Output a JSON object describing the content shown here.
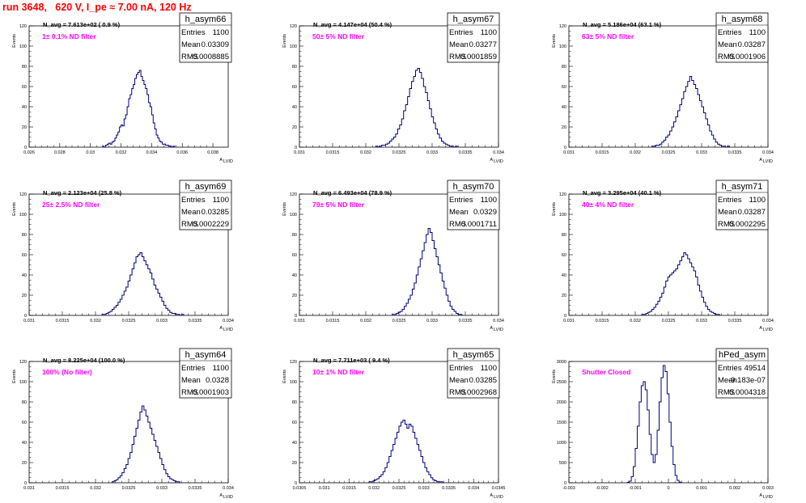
{
  "title": "run 3648,   620 V, I_pe ≈ 7.00 nA, 120 Hz",
  "colors": {
    "title": "#ff0000",
    "histogram": "#00007f",
    "annotation": "#ff00ff",
    "axis": "#000000",
    "background": "#ffffff"
  },
  "ylabel": "Events",
  "xlabel_main": "A",
  "xlabel_sub": "LVID",
  "stat_labels": {
    "entries": "Entries",
    "mean": "Mean",
    "rms": "RMS"
  },
  "chart_data": [
    {
      "type": "bar",
      "name": "h_asym66",
      "navg": "N_avg = 7.613e+02 ( 0.9 %)",
      "filter": "1± 0.1% ND filter",
      "stats": {
        "entries": "1100",
        "mean": "0.03309",
        "rms": "0.0008885"
      },
      "xlim": [
        0.026,
        0.039
      ],
      "ylim": [
        0,
        120
      ],
      "xticks": [
        0.026,
        0.028,
        0.03,
        0.032,
        0.034,
        0.036,
        0.038
      ],
      "xtick_labels": [
        "0.026",
        "0.028",
        "0.03",
        "0.032",
        "0.034",
        "0.036",
        "0.038"
      ],
      "yticks": [
        0,
        20,
        40,
        60,
        80,
        100,
        120
      ],
      "ytick_labels": [
        "0",
        "20",
        "40",
        "60",
        "80",
        "100",
        "120"
      ],
      "bin_start": 0.0308,
      "bin_width": 0.0001,
      "values": [
        1,
        0,
        2,
        3,
        4,
        3,
        5,
        6,
        9,
        12,
        15,
        20,
        22,
        21,
        28,
        32,
        40,
        48,
        52,
        58,
        62,
        68,
        72,
        74,
        76,
        70,
        66,
        62,
        58,
        52,
        44,
        40,
        32,
        24,
        18,
        12,
        9,
        6,
        5,
        3,
        3,
        2,
        2,
        1,
        1,
        0,
        1
      ]
    },
    {
      "type": "bar",
      "name": "h_asym67",
      "navg": "N_avg = 4.147e+04 (50.4 %)",
      "filter": "50± 5% ND filter",
      "stats": {
        "entries": "1100",
        "mean": "0.03277",
        "rms": "0.0001859"
      },
      "xlim": [
        0.031,
        0.034
      ],
      "ylim": [
        0,
        120
      ],
      "xticks": [
        0.031,
        0.0315,
        0.032,
        0.0325,
        0.033,
        0.0335,
        0.034
      ],
      "xtick_labels": [
        "0.031",
        "0.0315",
        "0.032",
        "0.0325",
        "0.033",
        "0.0335",
        "0.034"
      ],
      "yticks": [
        0,
        20,
        40,
        60,
        80,
        100,
        120
      ],
      "ytick_labels": [
        "0",
        "20",
        "40",
        "60",
        "80",
        "100",
        "120"
      ],
      "bin_start": 0.03215,
      "bin_width": 3e-05,
      "values": [
        1,
        0,
        1,
        2,
        2,
        3,
        4,
        6,
        8,
        10,
        13,
        18,
        22,
        28,
        36,
        42,
        50,
        58,
        65,
        70,
        76,
        78,
        74,
        68,
        60,
        54,
        46,
        38,
        30,
        24,
        18,
        13,
        9,
        6,
        4,
        3,
        2,
        1,
        1,
        0,
        1
      ]
    },
    {
      "type": "bar",
      "name": "h_asym68",
      "navg": "N_avg = 5.186e+04 (63.1 %)",
      "filter": "63± 5% ND filter",
      "stats": {
        "entries": "1100",
        "mean": "0.03287",
        "rms": "0.0001906"
      },
      "xlim": [
        0.031,
        0.034
      ],
      "ylim": [
        0,
        120
      ],
      "xticks": [
        0.031,
        0.0315,
        0.032,
        0.0325,
        0.033,
        0.0335,
        0.034
      ],
      "xtick_labels": [
        "0.031",
        "0.0315",
        "0.032",
        "0.0325",
        "0.033",
        "0.0335",
        "0.034"
      ],
      "yticks": [
        0,
        20,
        40,
        60,
        80,
        100,
        120
      ],
      "ytick_labels": [
        "0",
        "20",
        "40",
        "60",
        "80",
        "100",
        "120"
      ],
      "bin_start": 0.03225,
      "bin_width": 3e-05,
      "values": [
        1,
        1,
        2,
        2,
        3,
        5,
        7,
        10,
        12,
        16,
        20,
        25,
        30,
        36,
        42,
        48,
        55,
        60,
        65,
        70,
        66,
        62,
        58,
        52,
        46,
        40,
        34,
        28,
        22,
        16,
        12,
        8,
        5,
        3,
        2,
        1,
        1,
        0,
        1
      ]
    },
    {
      "type": "bar",
      "name": "h_asym69",
      "navg": "N_avg = 2.123e+04 (25.8 %)",
      "filter": "25± 2.5% ND filter",
      "stats": {
        "entries": "1100",
        "mean": "0.03285",
        "rms": "0.0002229"
      },
      "xlim": [
        0.031,
        0.034
      ],
      "ylim": [
        0,
        120
      ],
      "xticks": [
        0.031,
        0.0315,
        0.032,
        0.0325,
        0.033,
        0.0335,
        0.034
      ],
      "xtick_labels": [
        "0.031",
        "0.0315",
        "0.032",
        "0.0325",
        "0.033",
        "0.0335",
        "0.034"
      ],
      "yticks": [
        0,
        20,
        40,
        60,
        80,
        100,
        120
      ],
      "ytick_labels": [
        "0",
        "20",
        "40",
        "60",
        "80",
        "100",
        "120"
      ],
      "bin_start": 0.0321,
      "bin_width": 3e-05,
      "values": [
        1,
        1,
        2,
        3,
        4,
        6,
        8,
        10,
        13,
        16,
        20,
        24,
        28,
        34,
        40,
        46,
        52,
        58,
        60,
        62,
        58,
        54,
        50,
        46,
        42,
        36,
        30,
        26,
        22,
        18,
        14,
        10,
        7,
        5,
        3,
        2,
        2,
        1,
        1,
        0,
        1
      ]
    },
    {
      "type": "bar",
      "name": "h_asym70",
      "navg": "N_avg = 6.493e+04 (78.9 %)",
      "filter": "79± 5% ND filter",
      "stats": {
        "entries": "1100",
        "mean": "0.0329",
        "rms": "0.0001711"
      },
      "xlim": [
        0.031,
        0.034
      ],
      "ylim": [
        0,
        120
      ],
      "xticks": [
        0.031,
        0.0315,
        0.032,
        0.0325,
        0.033,
        0.0335,
        0.034
      ],
      "xtick_labels": [
        "0.031",
        "0.0315",
        "0.032",
        "0.0325",
        "0.033",
        "0.0335",
        "0.034"
      ],
      "yticks": [
        0,
        20,
        40,
        60,
        80,
        100,
        120
      ],
      "ytick_labels": [
        "0",
        "20",
        "40",
        "60",
        "80",
        "100",
        "120"
      ],
      "bin_start": 0.0324,
      "bin_width": 3e-05,
      "values": [
        1,
        1,
        2,
        3,
        4,
        6,
        9,
        12,
        16,
        20,
        26,
        32,
        40,
        48,
        56,
        64,
        72,
        80,
        86,
        82,
        74,
        66,
        58,
        50,
        42,
        34,
        27,
        20,
        14,
        9,
        6,
        4,
        2,
        1,
        1
      ]
    },
    {
      "type": "bar",
      "name": "h_asym71",
      "navg": "N_avg = 3.295e+04 (40.1 %)",
      "filter": "40± 4% ND filter",
      "stats": {
        "entries": "1100",
        "mean": "0.03287",
        "rms": "0.0002295"
      },
      "xlim": [
        0.031,
        0.034
      ],
      "ylim": [
        0,
        120
      ],
      "xticks": [
        0.031,
        0.0315,
        0.032,
        0.0325,
        0.033,
        0.0335,
        0.034
      ],
      "xtick_labels": [
        "0.031",
        "0.0315",
        "0.032",
        "0.0325",
        "0.033",
        "0.0335",
        "0.034"
      ],
      "yticks": [
        0,
        20,
        40,
        60,
        80,
        100,
        120
      ],
      "ytick_labels": [
        "0",
        "20",
        "40",
        "60",
        "80",
        "100",
        "120"
      ],
      "bin_start": 0.0321,
      "bin_width": 3e-05,
      "values": [
        1,
        1,
        2,
        3,
        4,
        6,
        8,
        11,
        14,
        18,
        22,
        28,
        34,
        38,
        40,
        42,
        44,
        46,
        50,
        54,
        58,
        62,
        60,
        56,
        52,
        48,
        44,
        38,
        30,
        24,
        18,
        13,
        9,
        6,
        4,
        3,
        2,
        1,
        1
      ]
    },
    {
      "type": "bar",
      "name": "h_asym64",
      "navg": "N_avg = 8.225e+04 (100.0 %)",
      "filter": "100% (No filter)",
      "stats": {
        "entries": "1100",
        "mean": "0.0328",
        "rms": "0.0001903"
      },
      "xlim": [
        0.031,
        0.034
      ],
      "ylim": [
        0,
        120
      ],
      "xticks": [
        0.031,
        0.0315,
        0.032,
        0.0325,
        0.033,
        0.0335,
        0.034
      ],
      "xtick_labels": [
        "0.031",
        "0.0315",
        "0.032",
        "0.0325",
        "0.033",
        "0.0335",
        "0.034"
      ],
      "yticks": [
        0,
        20,
        40,
        60,
        80,
        100,
        120
      ],
      "ytick_labels": [
        "0",
        "20",
        "40",
        "60",
        "80",
        "100",
        "120"
      ],
      "bin_start": 0.03225,
      "bin_width": 3e-05,
      "values": [
        1,
        2,
        3,
        5,
        7,
        10,
        14,
        18,
        24,
        30,
        38,
        46,
        54,
        62,
        70,
        76,
        72,
        66,
        60,
        54,
        48,
        42,
        36,
        30,
        24,
        18,
        13,
        9,
        6,
        4,
        3,
        2,
        1,
        1
      ]
    },
    {
      "type": "bar",
      "name": "h_asym65",
      "navg": "N_avg = 7.711e+03 ( 9.4 %)",
      "filter": "10± 1% ND filter",
      "stats": {
        "entries": "1100",
        "mean": "0.03285",
        "rms": "0.0002968"
      },
      "xlim": [
        0.0305,
        0.0345
      ],
      "ylim": [
        0,
        120
      ],
      "xticks": [
        0.0305,
        0.031,
        0.0315,
        0.032,
        0.0325,
        0.033,
        0.0335,
        0.034,
        0.0345
      ],
      "xtick_labels": [
        "0.0305",
        "0.031",
        "0.0315",
        "0.032",
        "0.0325",
        "0.033",
        "0.0335",
        "0.034",
        "0.0345"
      ],
      "yticks": [
        0,
        20,
        40,
        60,
        80,
        100,
        120
      ],
      "ytick_labels": [
        "0",
        "20",
        "40",
        "60",
        "80",
        "100",
        "120"
      ],
      "bin_start": 0.0319,
      "bin_width": 4e-05,
      "values": [
        1,
        1,
        2,
        3,
        4,
        6,
        8,
        11,
        15,
        20,
        26,
        32,
        38,
        44,
        50,
        56,
        60,
        62,
        58,
        54,
        58,
        56,
        50,
        44,
        38,
        32,
        26,
        20,
        15,
        11,
        8,
        5,
        3,
        2,
        1,
        1,
        1
      ]
    },
    {
      "type": "bar",
      "name": "hPed_asym",
      "navg": "",
      "filter": "Shutter Closed",
      "stats": {
        "entries": "49514",
        "mean": "-9.183e-07",
        "rms": "0.0004318"
      },
      "xlim": [
        -0.003,
        0.003
      ],
      "ylim": [
        0,
        3000
      ],
      "xticks": [
        -0.003,
        -0.002,
        -0.001,
        0,
        0.001,
        0.002,
        0.003
      ],
      "xtick_labels": [
        "-0.003",
        "-0.002",
        "-0.001",
        "0",
        "0.001",
        "0.002",
        "0.003"
      ],
      "yticks": [
        0,
        500,
        1000,
        1500,
        2000,
        2500,
        3000
      ],
      "ytick_labels": [
        "0",
        "500",
        "1000",
        "1500",
        "2000",
        "2500",
        "3000"
      ],
      "bin_start": -0.00124,
      "bin_width": 6e-05,
      "values": [
        10,
        40,
        150,
        400,
        850,
        1400,
        2000,
        2400,
        2500,
        2300,
        1800,
        1200,
        700,
        500,
        700,
        1300,
        2000,
        2600,
        2900,
        2750,
        2200,
        1500,
        900,
        450,
        180,
        60,
        15
      ]
    }
  ]
}
